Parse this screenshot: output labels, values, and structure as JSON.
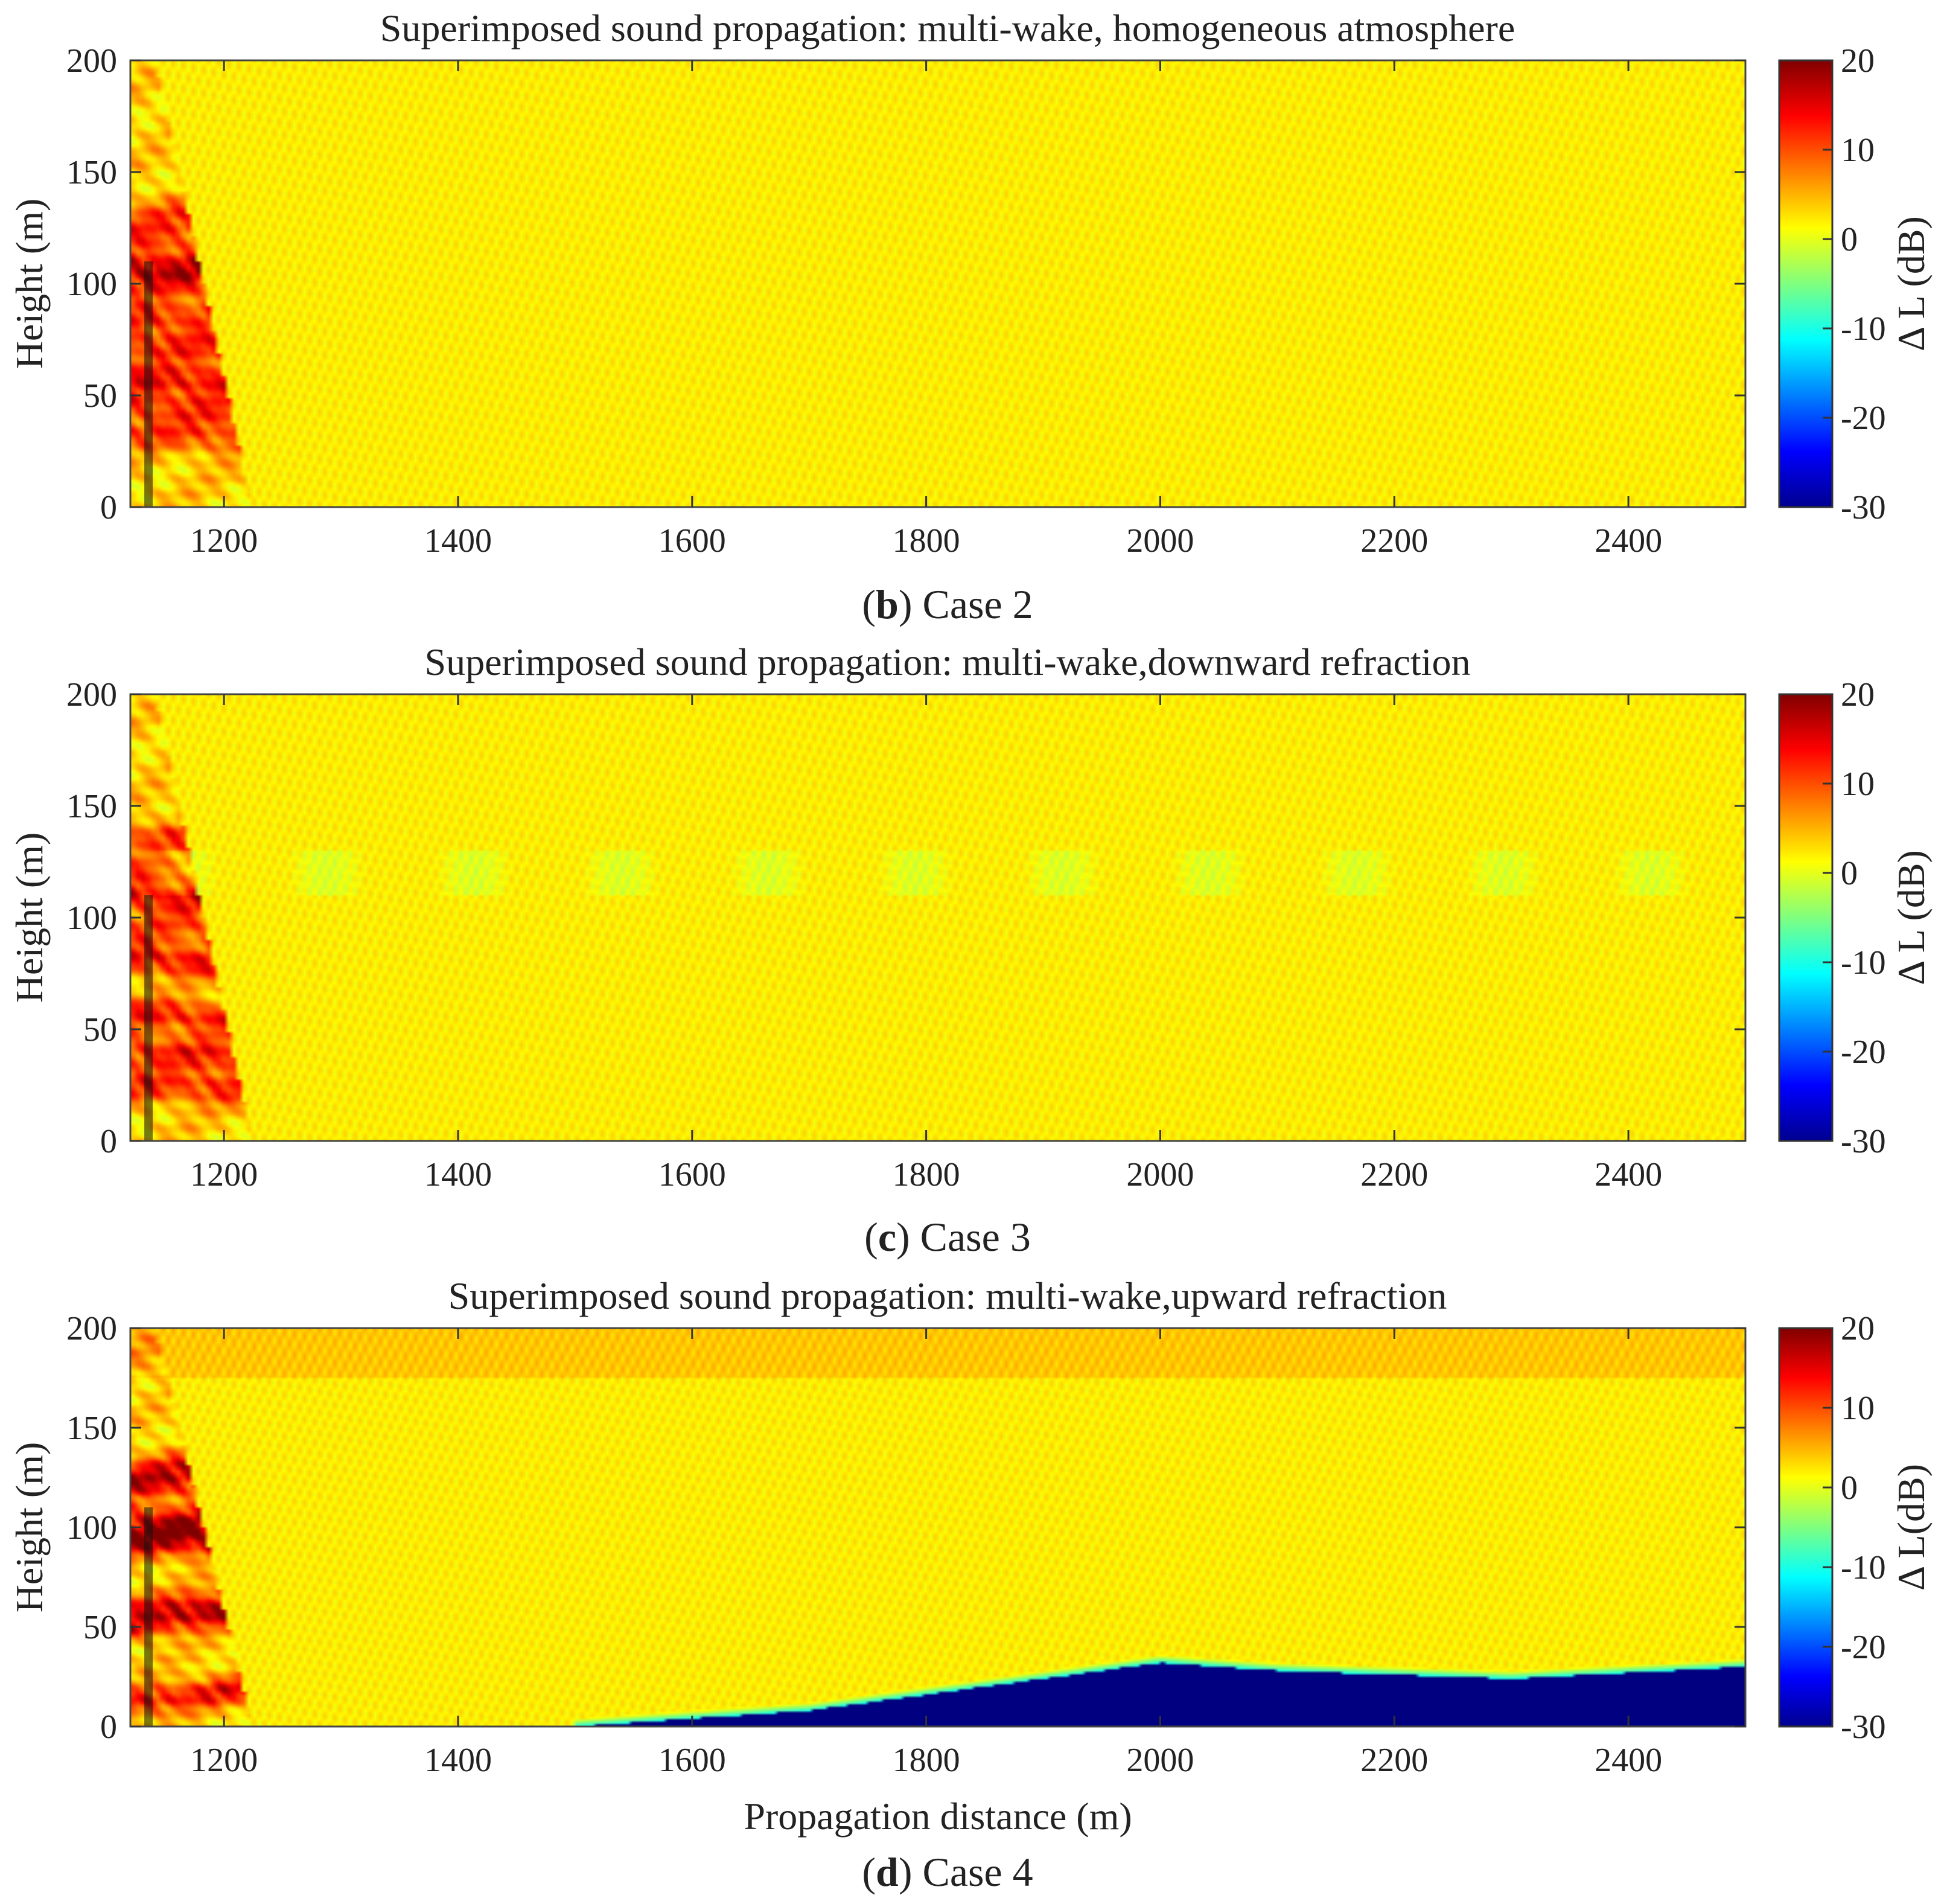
{
  "chart_data": [
    {
      "type": "heatmap",
      "id": "b",
      "title": "Superimposed sound propagation: multi-wake, homogeneous atmosphere",
      "caption_letter": "b",
      "caption_text": ") Case 2",
      "xlabel": "",
      "ylabel": "Height (m)",
      "xlim": [
        1120,
        2500
      ],
      "ylim": [
        0,
        200
      ],
      "xticks": [
        1200,
        1400,
        1600,
        1800,
        2000,
        2200,
        2400
      ],
      "yticks": [
        0,
        50,
        100,
        150,
        200
      ],
      "colorbar_label": "Δ L (dB)",
      "clim": [
        -30,
        20
      ],
      "cticks": [
        -30,
        -20,
        -10,
        0,
        10,
        20
      ],
      "mode": "homogeneous",
      "bands": [
        {
          "y0": 108,
          "slope": 0.0,
          "amp": 12
        },
        {
          "y0": 57,
          "slope": 0.0,
          "amp": 12
        },
        {
          "y0": 85,
          "slope": 0.006,
          "amp": 10
        },
        {
          "y0": 72,
          "slope": -0.004,
          "amp": 10
        },
        {
          "y0": 100,
          "slope": 0.025,
          "amp": 9
        },
        {
          "y0": 45,
          "slope": -0.02,
          "amp": 9
        },
        {
          "y0": 120,
          "slope": 0.04,
          "amp": 8
        },
        {
          "y0": 33,
          "slope": -0.025,
          "amp": 8
        },
        {
          "y0": 130,
          "slope": 0.05,
          "amp": 7
        }
      ]
    },
    {
      "type": "heatmap",
      "id": "c",
      "title": "Superimposed sound propagation: multi-wake,downward refraction",
      "caption_letter": "c",
      "caption_text": ") Case 3",
      "xlabel": "",
      "ylabel": "Height (m)",
      "xlim": [
        1120,
        2500
      ],
      "ylim": [
        0,
        200
      ],
      "xticks": [
        1200,
        1400,
        1600,
        1800,
        2000,
        2200,
        2400
      ],
      "yticks": [
        0,
        50,
        100,
        150,
        200
      ],
      "colorbar_label": "Δ L (dB)",
      "clim": [
        -30,
        20
      ],
      "cticks": [
        -30,
        -20,
        -10,
        0,
        10,
        20
      ],
      "mode": "downward",
      "bands": [
        {
          "y0": 110,
          "slope": -0.035,
          "amp": 12
        },
        {
          "y0": 82,
          "slope": -0.03,
          "amp": 12
        },
        {
          "y0": 57,
          "slope": -0.025,
          "amp": 11
        },
        {
          "y0": 40,
          "slope": -0.02,
          "amp": 11
        },
        {
          "y0": 25,
          "slope": -0.015,
          "amp": 10
        },
        {
          "y0": 135,
          "slope": 0.045,
          "amp": 9
        },
        {
          "y0": 120,
          "slope": 0.03,
          "amp": 7
        },
        {
          "y0": 95,
          "slope": 0.01,
          "amp": 7
        }
      ]
    },
    {
      "type": "heatmap",
      "id": "d",
      "title": "Superimposed sound propagation: multi-wake,upward refraction",
      "caption_letter": "d",
      "caption_text": ") Case 4",
      "xlabel": "Propagation distance (m)",
      "ylabel": "Height (m)",
      "xlim": [
        1120,
        2500
      ],
      "ylim": [
        0,
        200
      ],
      "xticks": [
        1200,
        1400,
        1600,
        1800,
        2000,
        2200,
        2400
      ],
      "yticks": [
        0,
        50,
        100,
        150,
        200
      ],
      "colorbar_label": "Δ L(dB)",
      "clim": [
        -30,
        20
      ],
      "cticks": [
        -30,
        -20,
        -10,
        0,
        10,
        20
      ],
      "mode": "upward",
      "shadow_boundary": [
        [
          1500,
          0
        ],
        [
          1700,
          8
        ],
        [
          1850,
          20
        ],
        [
          2000,
          32
        ],
        [
          2100,
          28
        ],
        [
          2300,
          24
        ],
        [
          2500,
          30
        ]
      ],
      "bands": [
        {
          "y0": 12,
          "slope": 0.075,
          "amp": 12
        },
        {
          "y0": 50,
          "slope": 0.09,
          "amp": 12
        },
        {
          "y0": 95,
          "slope": 0.075,
          "amp": 12
        },
        {
          "y0": 120,
          "slope": 0.045,
          "amp": 12
        },
        {
          "y0": 128,
          "slope": 0.07,
          "amp": 10
        },
        {
          "y0": 105,
          "slope": -0.03,
          "amp": 10
        },
        {
          "y0": 92,
          "slope": -0.025,
          "amp": 10
        },
        {
          "y0": 60,
          "slope": 0.02,
          "amp": 9
        }
      ]
    }
  ]
}
